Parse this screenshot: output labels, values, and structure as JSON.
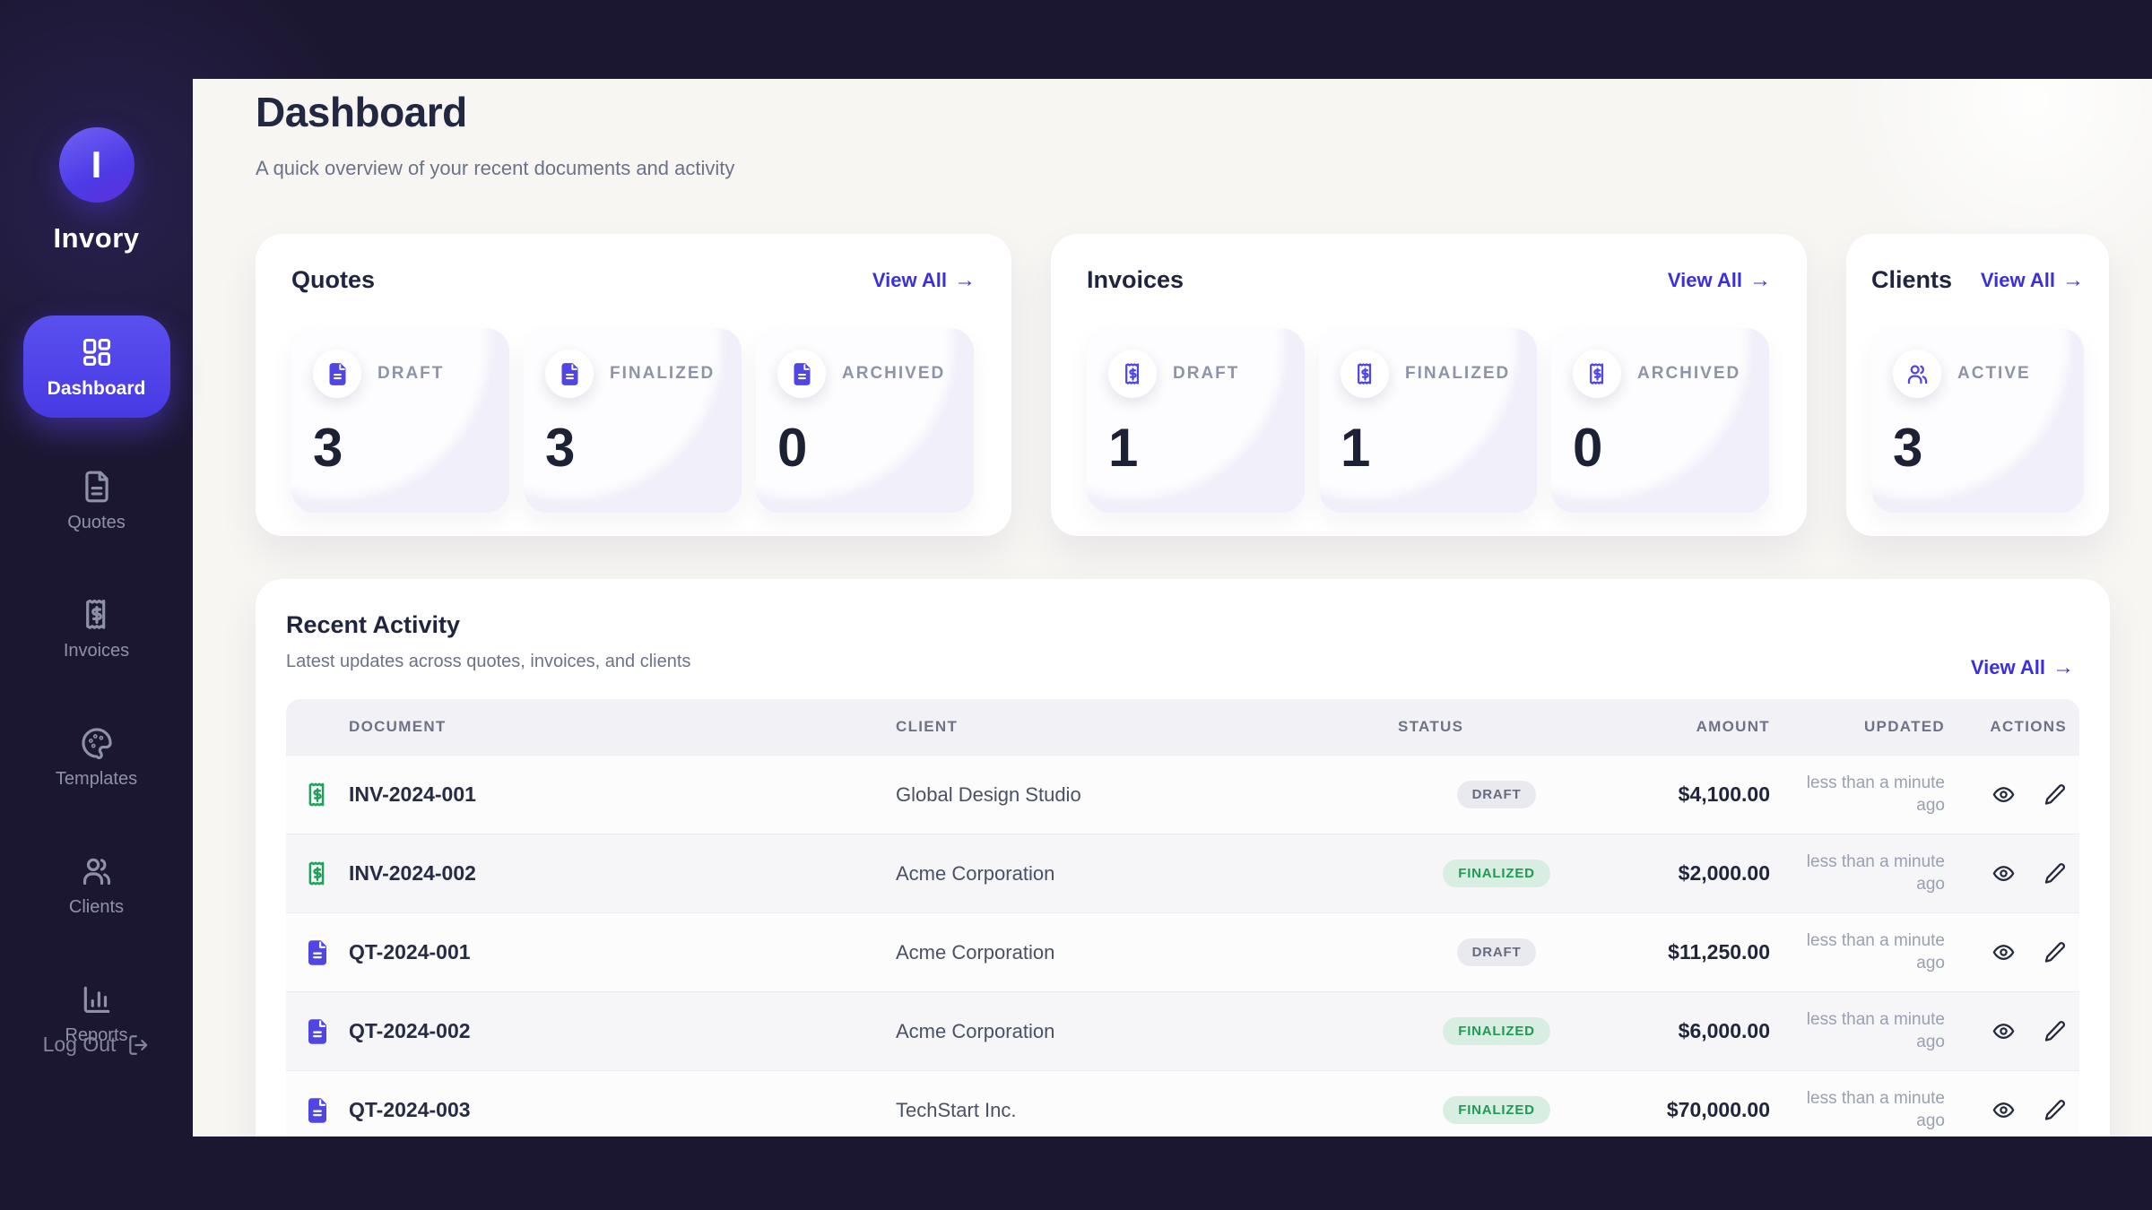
{
  "brand": {
    "name": "Invory",
    "logo_letter": "I"
  },
  "sidebar": {
    "items": [
      {
        "label": "Dashboard",
        "icon": "dashboard",
        "active": true
      },
      {
        "label": "Quotes",
        "icon": "file-text",
        "active": false
      },
      {
        "label": "Invoices",
        "icon": "receipt",
        "active": false
      },
      {
        "label": "Templates",
        "icon": "palette",
        "active": false
      },
      {
        "label": "Clients",
        "icon": "users",
        "active": false
      },
      {
        "label": "Reports",
        "icon": "bar-chart",
        "active": false
      }
    ],
    "logout_label": "Log Out"
  },
  "header": {
    "title": "Dashboard",
    "subtitle": "A quick overview of your recent documents and activity"
  },
  "icons": {
    "arrow_right": "→"
  },
  "cards": [
    {
      "key": "quotes",
      "title": "Quotes",
      "view_all": "View All",
      "tile_icon": "file-filled",
      "stats": [
        {
          "label": "DRAFT",
          "value": "3"
        },
        {
          "label": "FINALIZED",
          "value": "3"
        },
        {
          "label": "ARCHIVED",
          "value": "0"
        }
      ]
    },
    {
      "key": "invoices",
      "title": "Invoices",
      "view_all": "View All",
      "tile_icon": "receipt",
      "stats": [
        {
          "label": "DRAFT",
          "value": "1"
        },
        {
          "label": "FINALIZED",
          "value": "1"
        },
        {
          "label": "ARCHIVED",
          "value": "0"
        }
      ]
    },
    {
      "key": "clients",
      "title": "Clients",
      "view_all": "View All",
      "tile_icon": "users",
      "stats": [
        {
          "label": "ACTIVE",
          "value": "3"
        }
      ]
    }
  ],
  "recent_activity": {
    "title": "Recent Activity",
    "subtitle": "Latest updates across quotes, invoices, and clients",
    "view_all": "View All",
    "columns": [
      "DOCUMENT",
      "CLIENT",
      "STATUS",
      "AMOUNT",
      "UPDATED",
      "ACTIONS"
    ],
    "rows": [
      {
        "document": "INV-2024-001",
        "type": "invoice",
        "client": "Global Design Studio",
        "status": "DRAFT",
        "amount": "$4,100.00",
        "updated": "less than a minute ago"
      },
      {
        "document": "INV-2024-002",
        "type": "invoice",
        "client": "Acme Corporation",
        "status": "FINALIZED",
        "amount": "$2,000.00",
        "updated": "less than a minute ago"
      },
      {
        "document": "QT-2024-001",
        "type": "quote",
        "client": "Acme Corporation",
        "status": "DRAFT",
        "amount": "$11,250.00",
        "updated": "less than a minute ago"
      },
      {
        "document": "QT-2024-002",
        "type": "quote",
        "client": "Acme Corporation",
        "status": "FINALIZED",
        "amount": "$6,000.00",
        "updated": "less than a minute ago"
      },
      {
        "document": "QT-2024-003",
        "type": "quote",
        "client": "TechStart Inc.",
        "status": "FINALIZED",
        "amount": "$70,000.00",
        "updated": "less than a minute ago"
      }
    ]
  },
  "colors": {
    "accent": "#4b40e8",
    "link": "#3a2fe0",
    "sidebar_bg": "#1c1731",
    "panel_bg": "#f7f6f3",
    "draft_bg": "#e9e9f0",
    "draft_text": "#666b7d",
    "finalized_bg": "#d8eee2",
    "finalized_text": "#1e9a55",
    "invoice_icon": "#1fa05c",
    "quote_icon": "#4f46e5"
  }
}
